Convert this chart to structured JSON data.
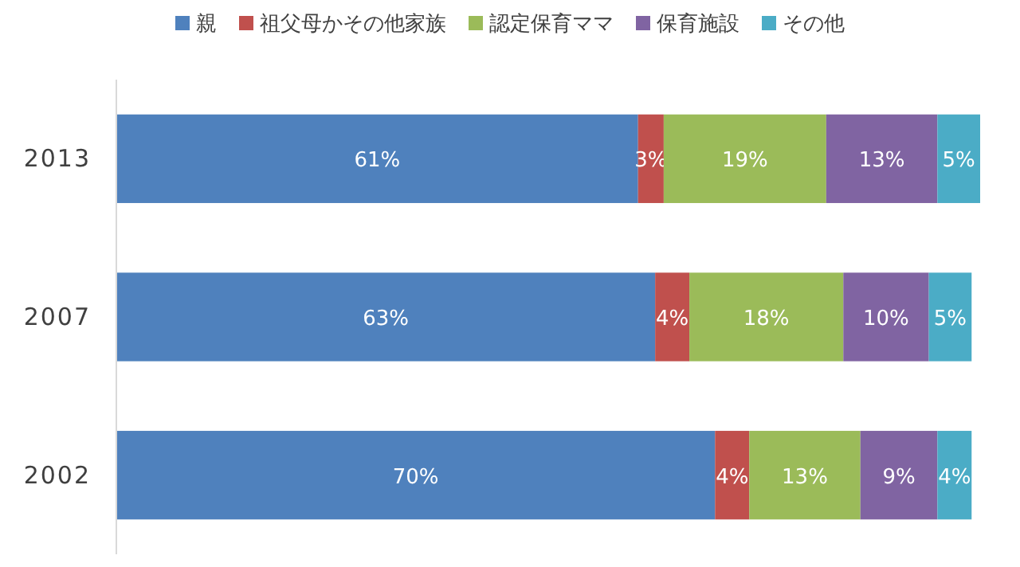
{
  "chart_data": {
    "type": "bar",
    "orientation": "horizontal",
    "stacked": true,
    "legend": "top",
    "categories": [
      "2013",
      "2007",
      "2002"
    ],
    "series": [
      {
        "name": "親",
        "color": "#4f81bd",
        "values": [
          61,
          63,
          70
        ],
        "value_labels": [
          "61%",
          "63%",
          "70%"
        ]
      },
      {
        "name": "祖父母かその他家族",
        "color": "#c0504d",
        "values": [
          3,
          4,
          4
        ],
        "value_labels": [
          "3%",
          "4%",
          "4%"
        ]
      },
      {
        "name": "認定保育ママ",
        "color": "#9bbb59",
        "values": [
          19,
          18,
          13
        ],
        "value_labels": [
          "19%",
          "18%",
          "13%"
        ]
      },
      {
        "name": "保育施設",
        "color": "#8064a2",
        "values": [
          13,
          10,
          9
        ],
        "value_labels": [
          "13%",
          "10%",
          "9%"
        ]
      },
      {
        "name": "その他",
        "color": "#4bacc6",
        "values": [
          5,
          5,
          4
        ],
        "value_labels": [
          "5%",
          "5%",
          "4%"
        ]
      }
    ]
  }
}
